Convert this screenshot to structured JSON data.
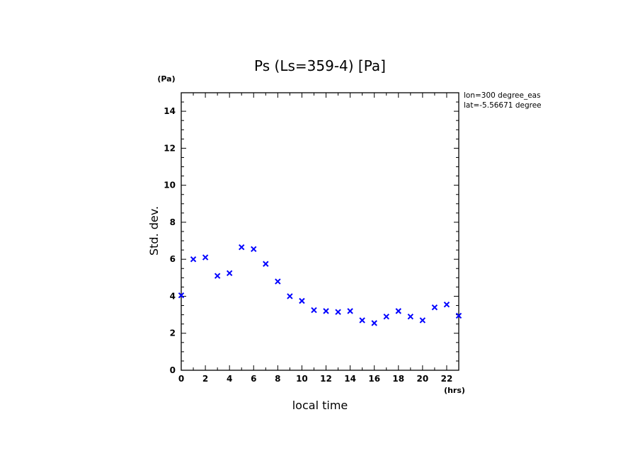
{
  "chart_data": {
    "type": "scatter",
    "title": "Ps (Ls=359-4) [Pa]",
    "xlabel": "local time",
    "ylabel": "Std. dev.",
    "x_unit": "(hrs)",
    "y_unit": "(Pa)",
    "xlim": [
      0,
      23
    ],
    "ylim": [
      0,
      15
    ],
    "x_ticks": [
      0,
      2,
      4,
      6,
      8,
      10,
      12,
      14,
      16,
      18,
      20,
      22
    ],
    "y_ticks": [
      0,
      2,
      4,
      6,
      8,
      10,
      12,
      14
    ],
    "grid": false,
    "marker": "x",
    "color": "#0000ff",
    "annotations": [
      "lon=300 degree_eas",
      "lat=-5.56671 degree"
    ],
    "x": [
      0,
      1,
      2,
      3,
      4,
      5,
      6,
      7,
      8,
      9,
      10,
      11,
      12,
      13,
      14,
      15,
      16,
      17,
      18,
      19,
      20,
      21,
      22,
      23
    ],
    "y": [
      4.05,
      6.0,
      6.1,
      5.1,
      5.25,
      6.65,
      6.55,
      5.75,
      4.8,
      4.0,
      3.75,
      3.25,
      3.2,
      3.15,
      3.2,
      2.7,
      2.55,
      2.9,
      3.2,
      2.9,
      2.7,
      3.4,
      3.55,
      2.95
    ]
  }
}
